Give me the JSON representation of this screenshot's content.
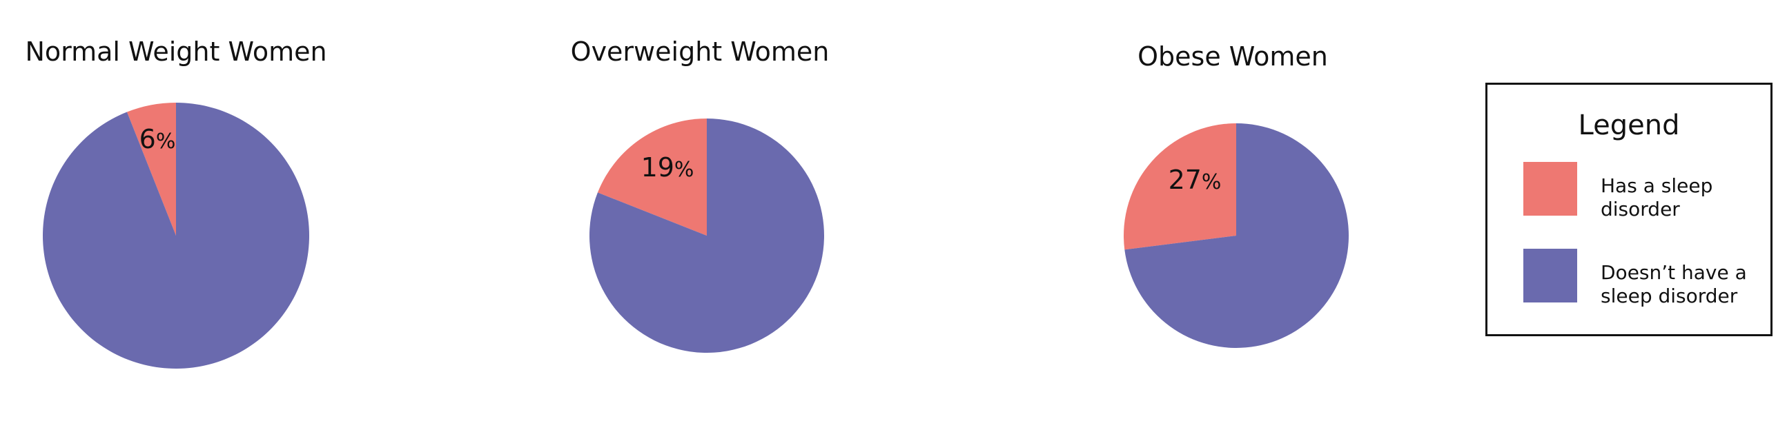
{
  "colors": {
    "has_disorder": "#EE7872",
    "no_disorder": "#6A6AAE"
  },
  "legend": {
    "title": "Legend",
    "placement": "right",
    "items": [
      {
        "label": "Has a sleep disorder",
        "color": "#EE7872"
      },
      {
        "label": "Doesn’t have a sleep disorder",
        "color": "#6A6AAE"
      }
    ]
  },
  "chart_data": [
    {
      "type": "pie",
      "title": "Normal Weight Women",
      "slices": [
        {
          "label": "Has a sleep disorder",
          "value": 6,
          "display": "6",
          "unit": "%",
          "color": "#EE7872"
        },
        {
          "label": "Doesn’t have a sleep disorder",
          "value": 94,
          "color": "#6A6AAE"
        }
      ]
    },
    {
      "type": "pie",
      "title": "Overweight Women",
      "slices": [
        {
          "label": "Has a sleep disorder",
          "value": 19,
          "display": "19",
          "unit": "%",
          "color": "#EE7872"
        },
        {
          "label": "Doesn’t have a sleep disorder",
          "value": 81,
          "color": "#6A6AAE"
        }
      ]
    },
    {
      "type": "pie",
      "title": "Obese Women",
      "slices": [
        {
          "label": "Has a sleep disorder",
          "value": 27,
          "display": "27",
          "unit": "%",
          "color": "#EE7872"
        },
        {
          "label": "Doesn’t have a sleep disorder",
          "value": 73,
          "color": "#6A6AAE"
        }
      ]
    }
  ]
}
